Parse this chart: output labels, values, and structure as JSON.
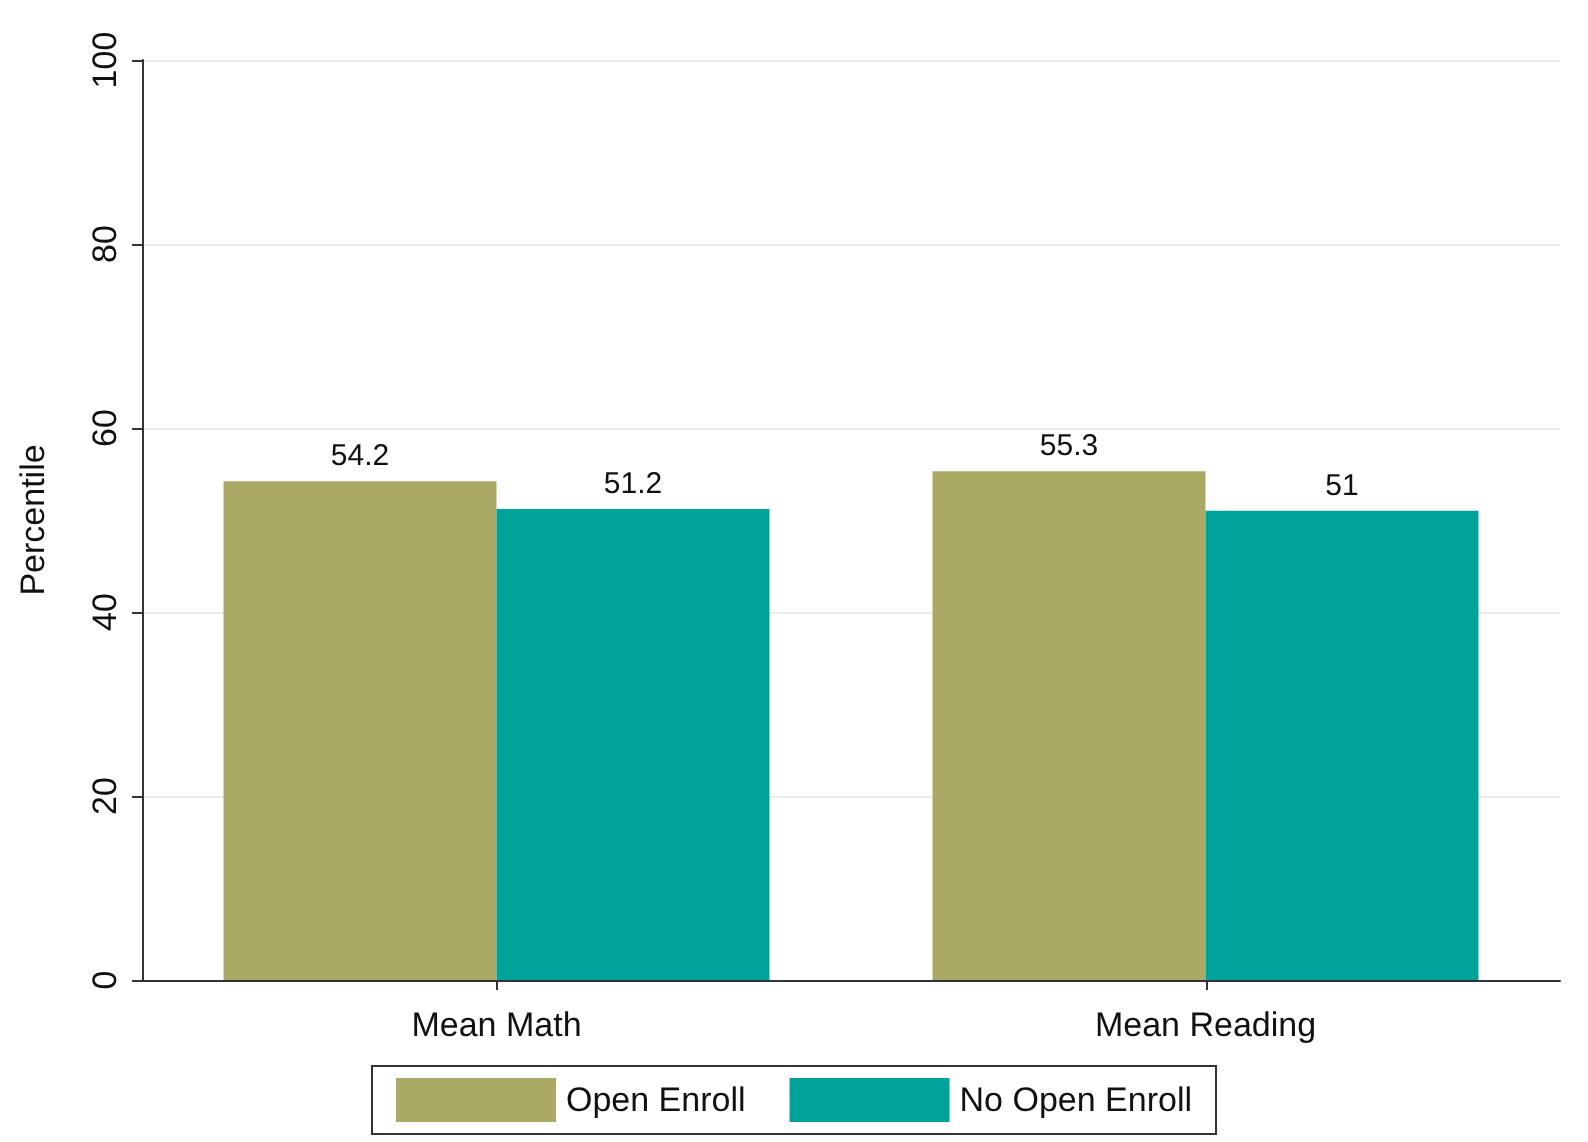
{
  "chart_data": {
    "type": "bar",
    "ylabel": "Percentile",
    "categories": [
      "Mean Math",
      "Mean Reading"
    ],
    "series": [
      {
        "name": "Open Enroll",
        "color": "#aaaa66",
        "values": [
          54.2,
          55.3
        ]
      },
      {
        "name": "No Open Enroll",
        "color": "#00a39a",
        "values": [
          51.2,
          51
        ]
      }
    ],
    "ylim": [
      0,
      100
    ],
    "yticks": [
      0,
      20,
      40,
      60,
      80,
      100
    ],
    "grid": "y",
    "legend": "bottom",
    "data_labels": true
  }
}
